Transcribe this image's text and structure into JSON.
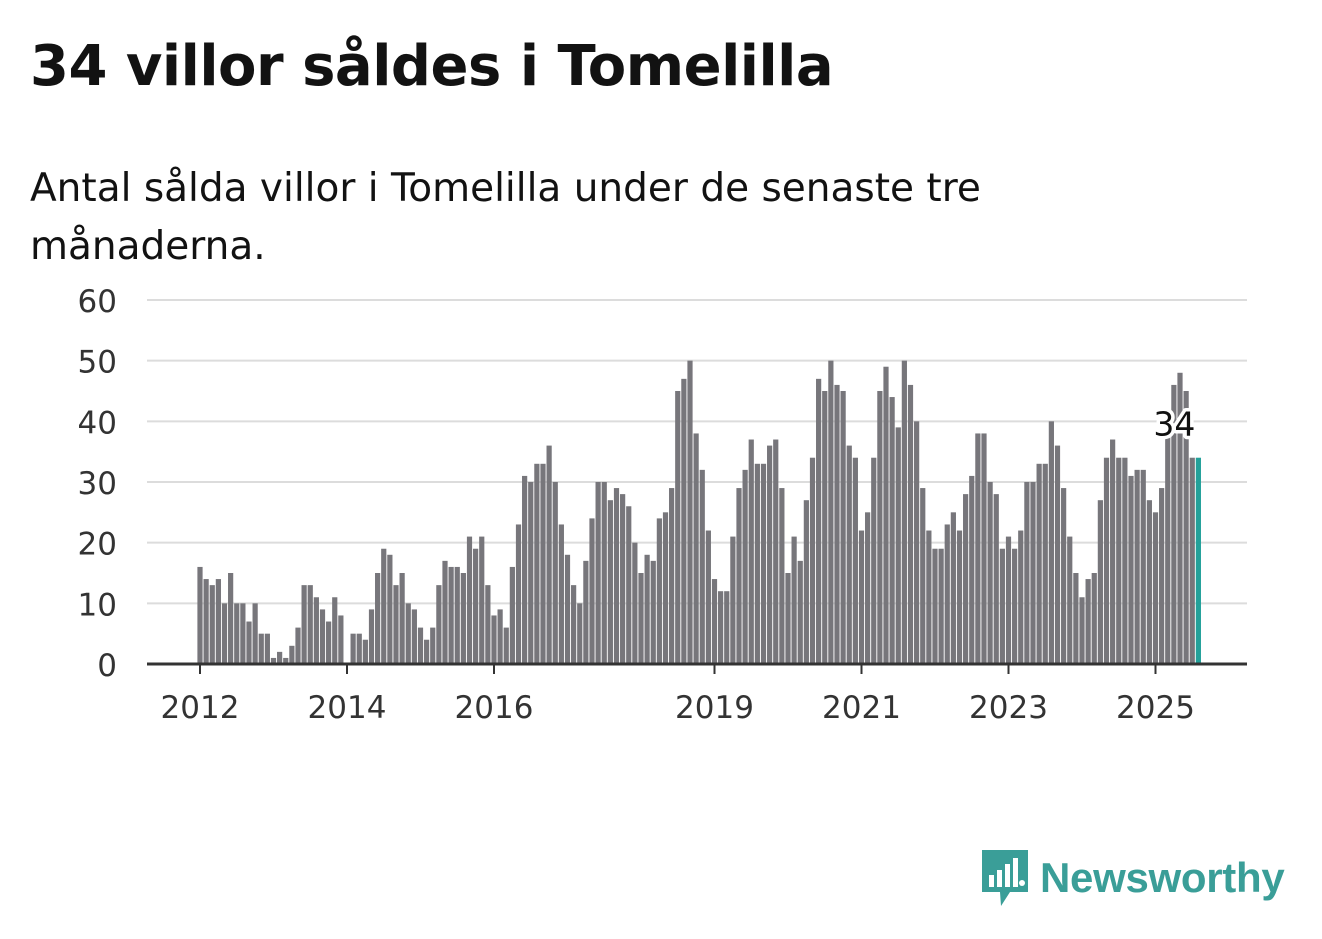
{
  "title": "34 villor såldes i Tomelilla",
  "subtitle": "Antal sålda villor i Tomelilla under de senaste tre månaderna.",
  "logo": {
    "text": "Newsworthy",
    "icon": "bar-chart-speech-bubble-icon",
    "color": "#3a9e98"
  },
  "chart_data": {
    "type": "bar",
    "title": "34 villor såldes i Tomelilla",
    "subtitle": "Antal sålda villor i Tomelilla under de senaste tre månaderna.",
    "xlabel": "",
    "ylabel": "",
    "ylim": [
      0,
      60
    ],
    "yticks": [
      0,
      10,
      20,
      30,
      40,
      50,
      60
    ],
    "xticks": [
      "2012",
      "2014",
      "2016",
      "2019",
      "2021",
      "2023",
      "2025"
    ],
    "grid": true,
    "legend": "none",
    "bar_color": "#77767b",
    "highlight_color": "#22a19a",
    "start": "2012-01",
    "frequency": "monthly",
    "highlight_label": "34",
    "values": [
      16,
      14,
      13,
      14,
      10,
      15,
      10,
      10,
      7,
      10,
      5,
      5,
      1,
      2,
      1,
      3,
      6,
      13,
      13,
      11,
      9,
      7,
      11,
      8,
      0,
      5,
      5,
      4,
      9,
      15,
      19,
      18,
      13,
      15,
      10,
      9,
      6,
      4,
      6,
      13,
      17,
      16,
      16,
      15,
      21,
      19,
      21,
      13,
      8,
      9,
      6,
      16,
      23,
      31,
      30,
      33,
      33,
      36,
      30,
      23,
      18,
      13,
      10,
      17,
      24,
      30,
      30,
      27,
      29,
      28,
      26,
      20,
      15,
      18,
      17,
      24,
      25,
      29,
      45,
      47,
      50,
      38,
      32,
      22,
      14,
      12,
      12,
      21,
      29,
      32,
      37,
      33,
      33,
      36,
      37,
      29,
      15,
      21,
      17,
      27,
      34,
      47,
      45,
      50,
      46,
      45,
      36,
      34,
      22,
      25,
      34,
      45,
      49,
      44,
      39,
      50,
      46,
      40,
      29,
      22,
      19,
      19,
      23,
      25,
      22,
      28,
      31,
      38,
      38,
      30,
      28,
      19,
      21,
      19,
      22,
      30,
      30,
      33,
      33,
      40,
      36,
      29,
      21,
      15,
      11,
      14,
      15,
      27,
      34,
      37,
      34,
      34,
      31,
      32,
      32,
      27,
      25,
      29,
      38,
      46,
      48,
      45,
      34,
      34
    ]
  }
}
